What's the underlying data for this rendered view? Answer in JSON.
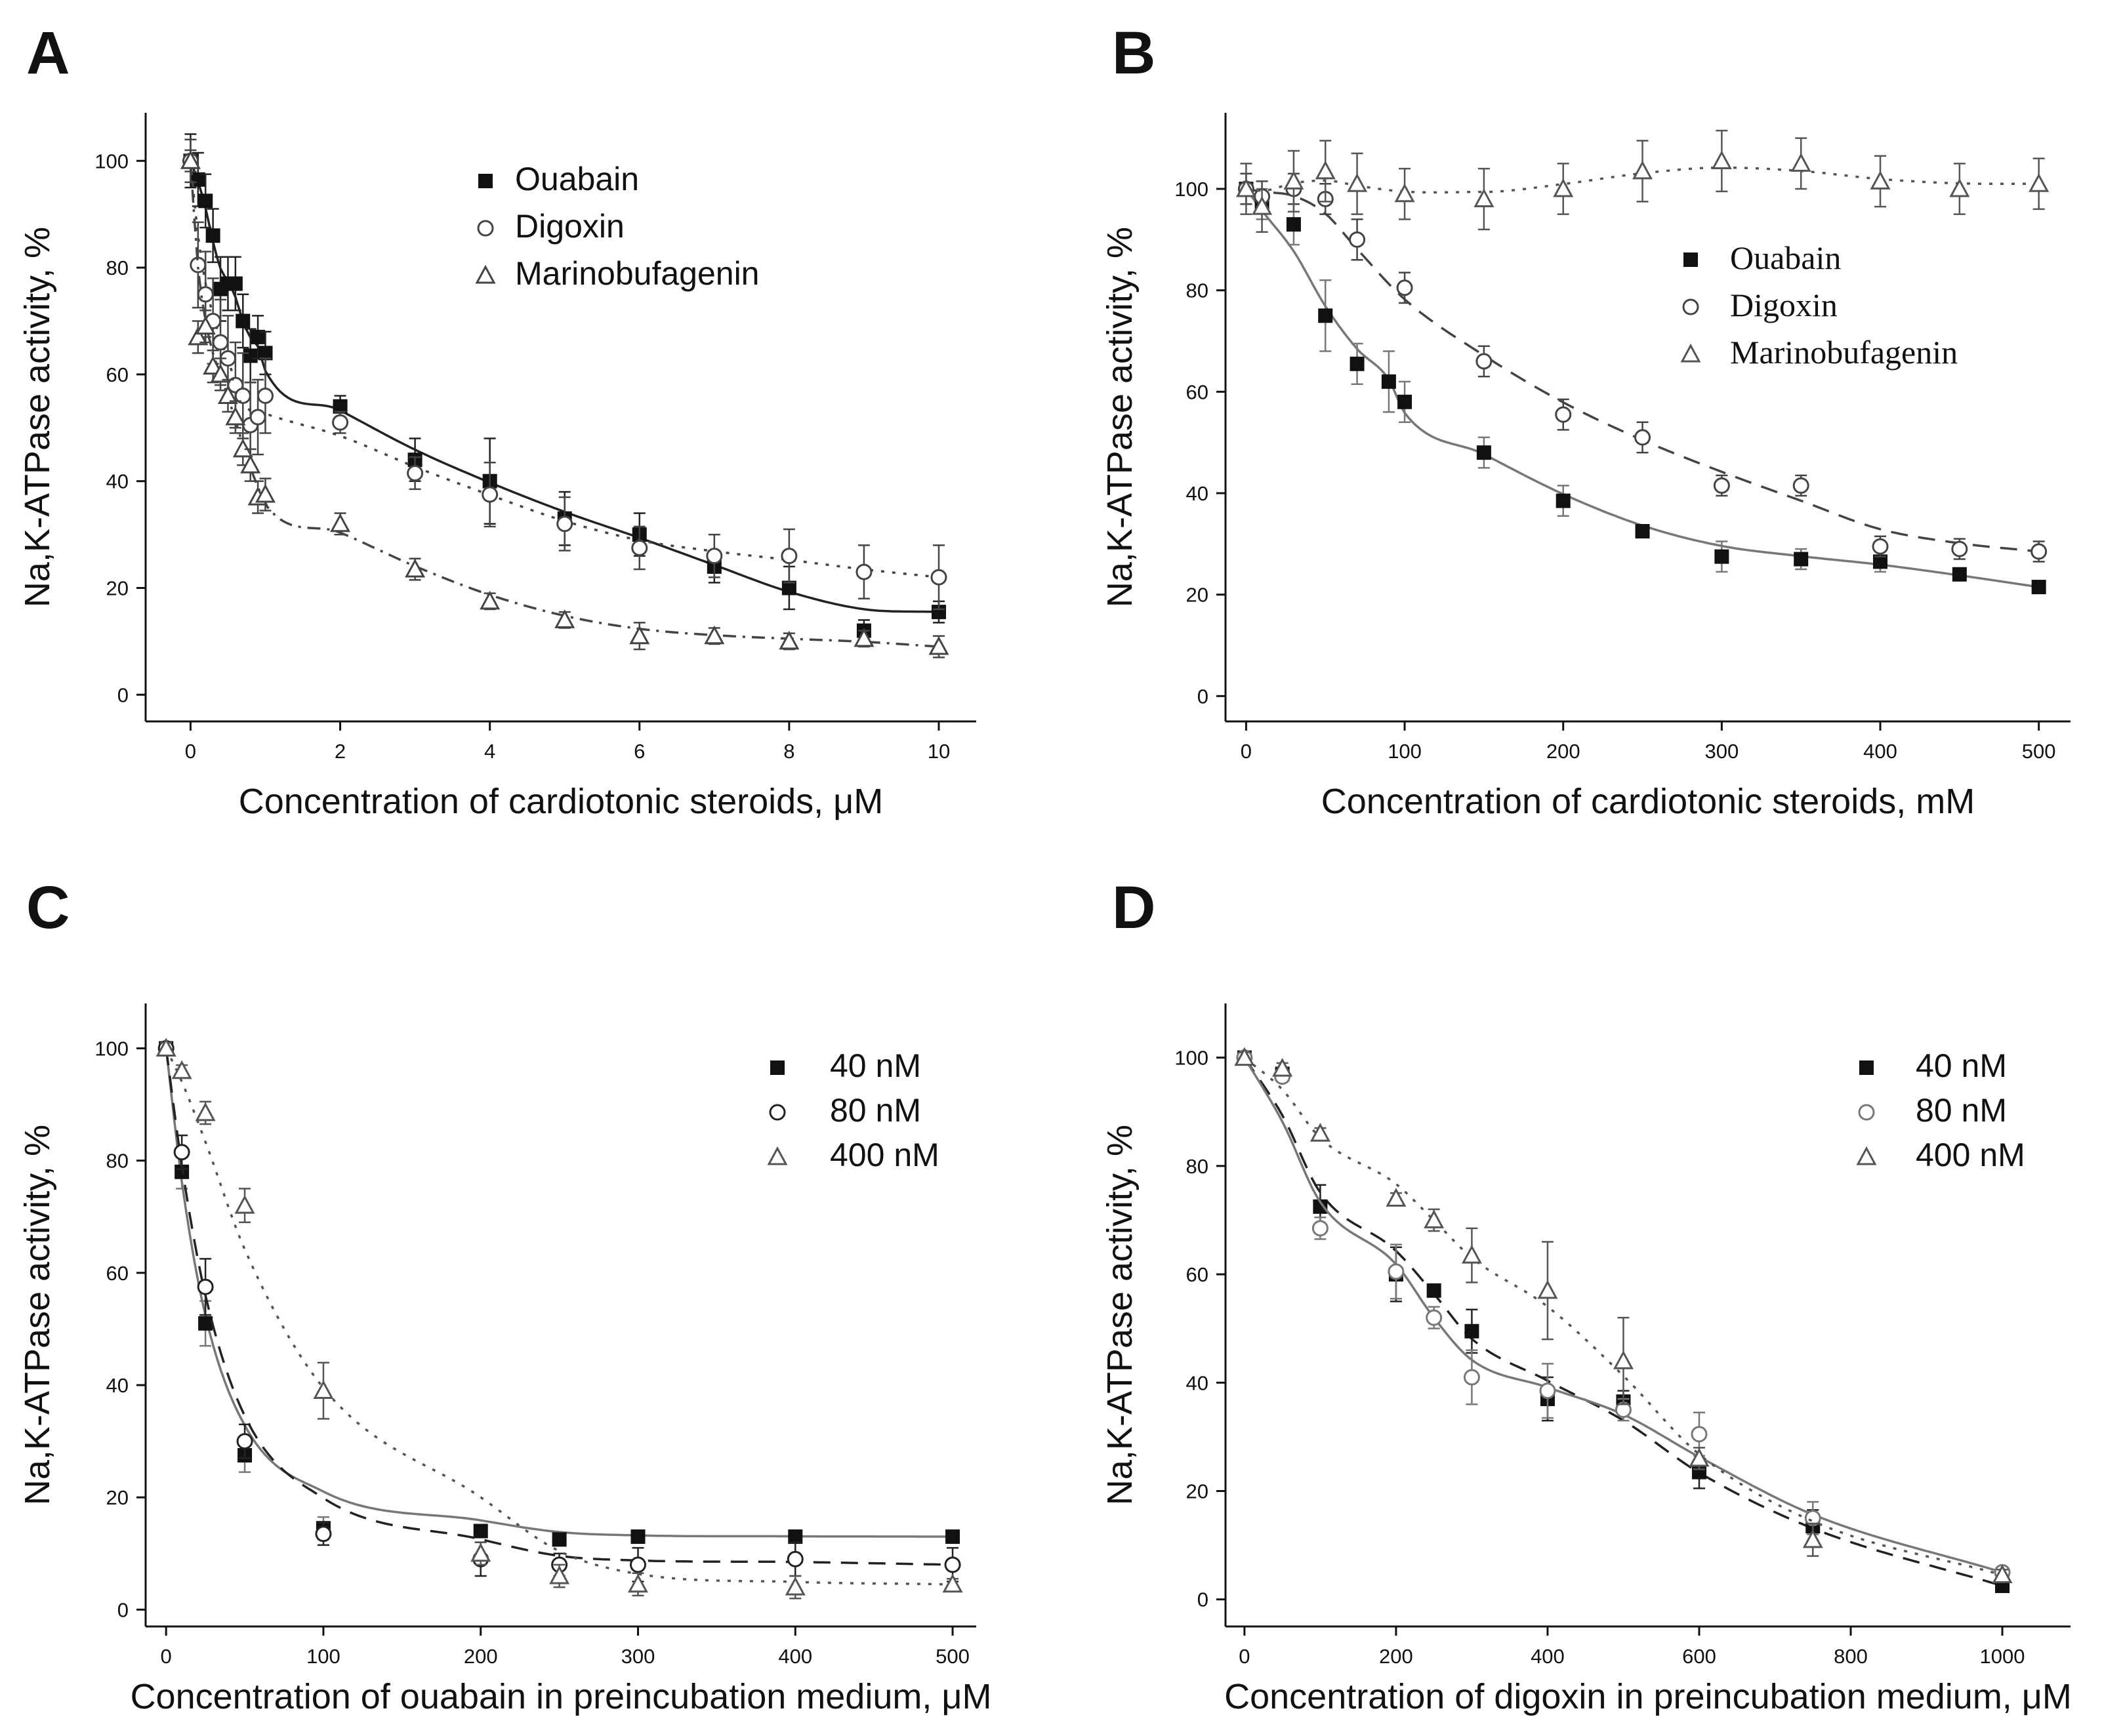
{
  "chart_data": [
    {
      "panel": "A",
      "type": "scatter",
      "xlabel": "Concentration of cardiotonic steroids, μM",
      "ylabel": "Na,K-ATPase activity, %",
      "xlim": [
        -0.6,
        10.5
      ],
      "ylim": [
        -5,
        109
      ],
      "xticks": [
        0,
        2,
        4,
        6,
        8,
        10
      ],
      "yticks": [
        0,
        20,
        40,
        60,
        80,
        100
      ],
      "legend_position": "top-right",
      "series": [
        {
          "name": "Ouabain",
          "marker": "square-filled",
          "line": "solid",
          "color": "#222222",
          "x": [
            0,
            0.1,
            0.2,
            0.3,
            0.4,
            0.5,
            0.6,
            0.7,
            0.8,
            0.9,
            1,
            2,
            3,
            4,
            5,
            6,
            7,
            8,
            9,
            10
          ],
          "y": [
            100,
            96.5,
            92.5,
            86,
            76,
            77,
            77,
            70,
            63.5,
            67,
            64,
            54,
            44,
            40,
            33,
            30,
            24,
            20,
            12,
            15.5
          ],
          "err": [
            5,
            5,
            5,
            5,
            6,
            5,
            5,
            5,
            5,
            4,
            4,
            2,
            4,
            8,
            5,
            4,
            3,
            4,
            2,
            2
          ]
        },
        {
          "name": "Digoxin",
          "marker": "circle-open",
          "line": "dotted",
          "color": "#444444",
          "x": [
            0,
            0.1,
            0.2,
            0.3,
            0.4,
            0.5,
            0.6,
            0.7,
            0.8,
            0.9,
            1,
            2,
            3,
            4,
            5,
            6,
            7,
            8,
            9,
            10
          ],
          "y": [
            100,
            80.5,
            75,
            70,
            66,
            63,
            58,
            56,
            50.5,
            52,
            56,
            51,
            41.5,
            37.5,
            32,
            27.5,
            26,
            26,
            23,
            22
          ],
          "err": [
            4,
            8,
            8,
            8,
            8,
            8,
            8,
            8,
            8,
            7,
            7,
            2,
            3,
            6,
            5,
            4,
            4,
            5,
            5,
            6
          ]
        },
        {
          "name": "Marinobufagenin",
          "marker": "triangle-open",
          "line": "dash-dot",
          "color": "#444444",
          "x": [
            0,
            0.1,
            0.2,
            0.3,
            0.4,
            0.5,
            0.6,
            0.7,
            0.8,
            0.9,
            1,
            2,
            3,
            4,
            5,
            6,
            7,
            8,
            9,
            10
          ],
          "y": [
            100,
            67,
            69,
            61.5,
            60,
            56,
            52,
            46,
            43,
            37,
            37.5,
            32,
            23.5,
            17.5,
            14,
            11,
            11,
            10,
            10.5,
            9
          ],
          "err": [
            2,
            3,
            3,
            3,
            3,
            3,
            3,
            3,
            3,
            3,
            3,
            2,
            2,
            1.5,
            1.5,
            2.5,
            1.5,
            1.5,
            1.5,
            2
          ]
        }
      ]
    },
    {
      "panel": "B",
      "type": "scatter",
      "xlabel": "Concentration of cardiotonic steroids, mM",
      "ylabel": "Na,K-ATPase activity, %",
      "xlim": [
        -13,
        520
      ],
      "ylim": [
        -5,
        115
      ],
      "xticks": [
        0,
        100,
        200,
        300,
        400,
        500
      ],
      "yticks": [
        0,
        20,
        40,
        60,
        80,
        100
      ],
      "legend_position": "top-right",
      "series": [
        {
          "name": "Ouabain",
          "marker": "square-filled",
          "line": "solid",
          "color": "#777777",
          "x": [
            0,
            10,
            30,
            50,
            70,
            90,
            100,
            150,
            200,
            250,
            300,
            350,
            400,
            450,
            500
          ],
          "y": [
            100,
            97,
            93,
            75,
            65.5,
            62,
            58,
            48,
            38.5,
            32.5,
            27.5,
            27,
            26.5,
            24,
            21.5
          ],
          "err": [
            3,
            3,
            4,
            7,
            4,
            6,
            4,
            3,
            3,
            1,
            3,
            2,
            2,
            1,
            1
          ]
        },
        {
          "name": "Digoxin",
          "marker": "circle-open",
          "line": "dashed",
          "color": "#444444",
          "x": [
            0,
            10,
            30,
            50,
            70,
            100,
            150,
            200,
            250,
            300,
            350,
            400,
            450,
            500
          ],
          "y": [
            100,
            98.5,
            100,
            98,
            90,
            80.5,
            66,
            55.5,
            51,
            41.5,
            41.5,
            29.5,
            29,
            28.5
          ],
          "err": [
            3,
            3,
            3,
            3,
            4,
            3,
            3,
            3,
            3,
            2,
            2,
            2,
            2,
            2
          ]
        },
        {
          "name": "Marinobufagenin",
          "marker": "triangle-open",
          "line": "dotted",
          "color": "#555555",
          "x": [
            0,
            10,
            30,
            50,
            70,
            100,
            150,
            200,
            250,
            300,
            350,
            400,
            450,
            500
          ],
          "y": [
            100,
            96.5,
            101.5,
            103.5,
            101,
            99,
            98,
            100,
            103.5,
            105.5,
            105,
            101.5,
            100,
            101
          ],
          "err": [
            5,
            5,
            6,
            6,
            6,
            5,
            6,
            5,
            6,
            6,
            5,
            5,
            5,
            5
          ]
        }
      ]
    },
    {
      "panel": "C",
      "type": "scatter",
      "xlabel": "Concentration of ouabain in preincubation medium, μM",
      "ylabel": "Na,K-ATPase activity, %",
      "xlim": [
        -13,
        515
      ],
      "ylim": [
        -3,
        108
      ],
      "xticks": [
        0,
        100,
        200,
        300,
        400,
        500
      ],
      "yticks": [
        0,
        20,
        40,
        60,
        80,
        100
      ],
      "legend_position": "top-right",
      "series": [
        {
          "name": "40 nM",
          "marker": "square-filled",
          "line": "solid",
          "color": "#777777",
          "x": [
            0,
            10,
            25,
            50,
            100,
            200,
            250,
            300,
            400,
            500
          ],
          "y": [
            100,
            78,
            51,
            27.5,
            14.5,
            14,
            12.5,
            13,
            13,
            13
          ],
          "err": [
            1,
            3,
            4,
            3,
            2,
            1,
            1,
            1,
            1,
            1
          ]
        },
        {
          "name": "80 nM",
          "marker": "circle-open",
          "line": "dashed",
          "color": "#222222",
          "x": [
            0,
            10,
            25,
            50,
            100,
            200,
            250,
            300,
            400,
            500
          ],
          "y": [
            100,
            81.5,
            57.5,
            30,
            13.5,
            9,
            8,
            8,
            9,
            8
          ],
          "err": [
            1,
            3,
            5,
            3,
            2,
            3,
            2,
            3,
            3,
            3
          ]
        },
        {
          "name": "400 nM",
          "marker": "triangle-open",
          "line": "dotted",
          "color": "#555555",
          "x": [
            0,
            10,
            25,
            50,
            100,
            200,
            250,
            300,
            400,
            500
          ],
          "y": [
            100,
            96,
            88.5,
            72,
            39,
            10,
            6,
            4.5,
            4,
            4.5
          ],
          "err": [
            1,
            1,
            2,
            3,
            5,
            2,
            2,
            2,
            2,
            1
          ]
        }
      ]
    },
    {
      "panel": "D",
      "type": "scatter",
      "xlabel": "Concentration of digoxin in preincubation medium, μM",
      "ylabel": "Na,K-ATPase activity, %",
      "xlim": [
        -25,
        1090
      ],
      "ylim": [
        -5,
        110
      ],
      "xticks": [
        0,
        200,
        400,
        600,
        800,
        1000
      ],
      "yticks": [
        0,
        20,
        40,
        60,
        80,
        100
      ],
      "legend_position": "top-right",
      "series": [
        {
          "name": "40 nM",
          "marker": "square-filled",
          "line": "dashed",
          "color": "#222222",
          "x": [
            0,
            50,
            100,
            200,
            250,
            300,
            400,
            500,
            600,
            750,
            1000
          ],
          "y": [
            100,
            97,
            72.5,
            60,
            57,
            49.5,
            37,
            36.5,
            23.5,
            13.5,
            2.5
          ],
          "err": [
            1,
            1,
            4,
            5,
            1,
            4,
            4,
            2,
            3,
            3,
            1
          ]
        },
        {
          "name": "80 nM",
          "marker": "circle-open",
          "line": "solid",
          "color": "#777777",
          "x": [
            0,
            50,
            100,
            200,
            250,
            300,
            400,
            500,
            600,
            750,
            1000
          ],
          "y": [
            100,
            96.5,
            68.5,
            60.5,
            52,
            41,
            38.5,
            35,
            30.5,
            15,
            5
          ],
          "err": [
            1,
            1,
            2,
            5,
            2,
            5,
            5,
            2,
            4,
            3,
            1
          ]
        },
        {
          "name": "400 nM",
          "marker": "triangle-open",
          "line": "dotted",
          "color": "#555555",
          "x": [
            0,
            50,
            100,
            200,
            250,
            300,
            400,
            500,
            600,
            750,
            1000
          ],
          "y": [
            100,
            98,
            86,
            74,
            70,
            63.5,
            57,
            44,
            26,
            11,
            4.5
          ],
          "err": [
            1,
            1,
            1,
            1,
            2,
            5,
            9,
            8,
            2,
            3,
            1
          ]
        }
      ]
    }
  ]
}
